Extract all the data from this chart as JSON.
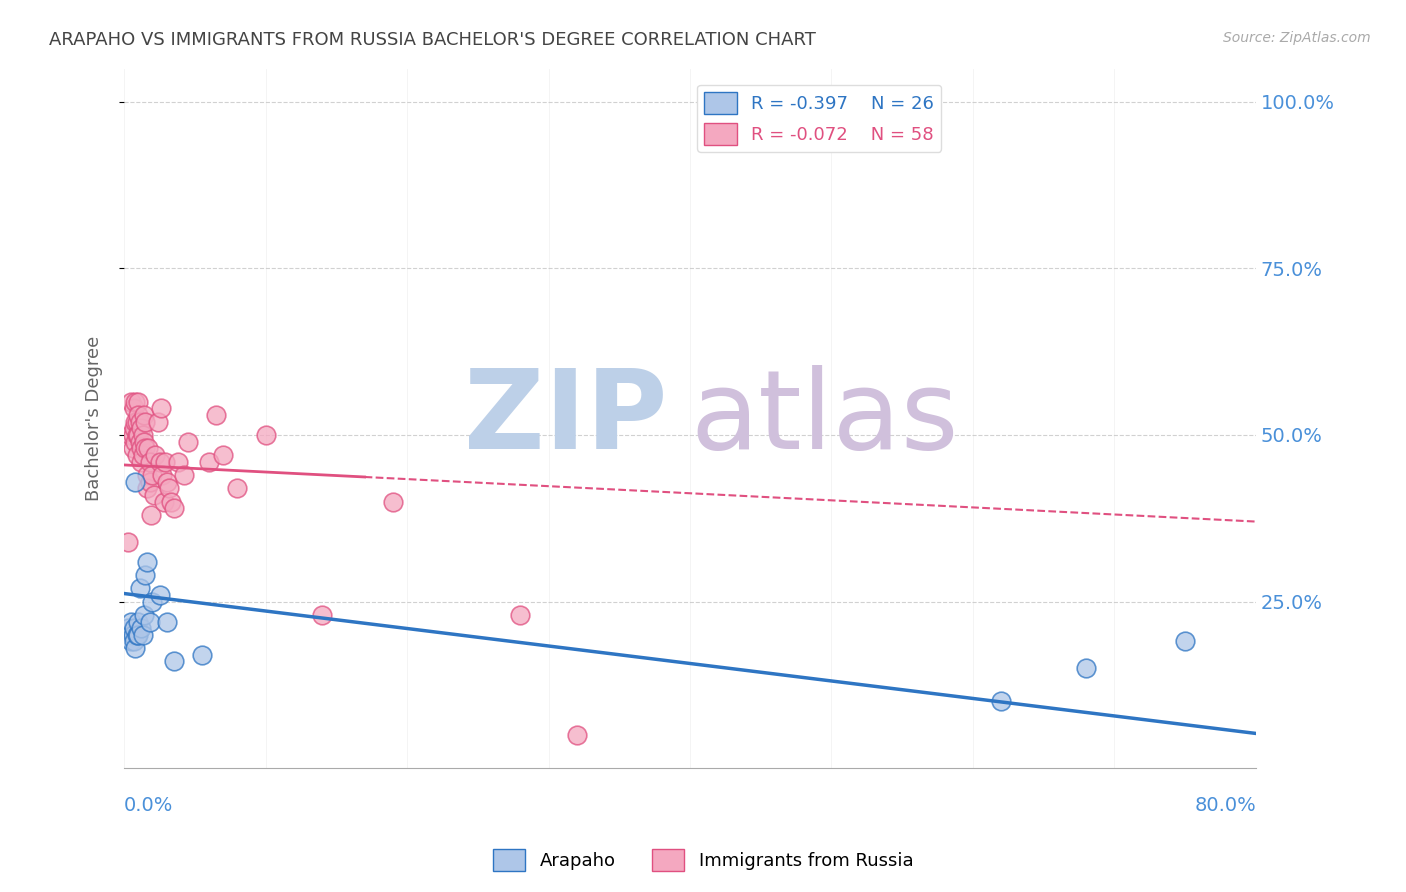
{
  "title": "ARAPAHO VS IMMIGRANTS FROM RUSSIA BACHELOR'S DEGREE CORRELATION CHART",
  "source": "Source: ZipAtlas.com",
  "ylabel": "Bachelor's Degree",
  "ytick_labels": [
    "25.0%",
    "50.0%",
    "75.0%",
    "100.0%"
  ],
  "ytick_values": [
    0.25,
    0.5,
    0.75,
    1.0
  ],
  "xlim": [
    0.0,
    0.8
  ],
  "ylim": [
    0.0,
    1.05
  ],
  "legend_blue_r": "-0.397",
  "legend_blue_n": "26",
  "legend_pink_r": "-0.072",
  "legend_pink_n": "58",
  "arapaho_x": [
    0.003,
    0.005,
    0.005,
    0.006,
    0.007,
    0.007,
    0.008,
    0.008,
    0.009,
    0.01,
    0.01,
    0.011,
    0.012,
    0.013,
    0.014,
    0.015,
    0.016,
    0.018,
    0.02,
    0.025,
    0.03,
    0.035,
    0.055,
    0.62,
    0.68,
    0.75
  ],
  "arapaho_y": [
    0.21,
    0.19,
    0.22,
    0.2,
    0.21,
    0.19,
    0.18,
    0.43,
    0.2,
    0.22,
    0.2,
    0.27,
    0.21,
    0.2,
    0.23,
    0.29,
    0.31,
    0.22,
    0.25,
    0.26,
    0.22,
    0.16,
    0.17,
    0.1,
    0.15,
    0.19
  ],
  "russia_x": [
    0.003,
    0.004,
    0.005,
    0.006,
    0.006,
    0.007,
    0.007,
    0.008,
    0.008,
    0.008,
    0.009,
    0.009,
    0.009,
    0.01,
    0.01,
    0.01,
    0.011,
    0.011,
    0.012,
    0.012,
    0.012,
    0.013,
    0.013,
    0.014,
    0.014,
    0.015,
    0.015,
    0.016,
    0.016,
    0.017,
    0.018,
    0.018,
    0.019,
    0.02,
    0.021,
    0.022,
    0.024,
    0.025,
    0.026,
    0.027,
    0.028,
    0.029,
    0.03,
    0.032,
    0.033,
    0.035,
    0.038,
    0.042,
    0.045,
    0.06,
    0.065,
    0.07,
    0.08,
    0.1,
    0.14,
    0.19,
    0.28,
    0.32
  ],
  "russia_y": [
    0.34,
    0.5,
    0.55,
    0.5,
    0.48,
    0.54,
    0.51,
    0.55,
    0.52,
    0.49,
    0.52,
    0.5,
    0.47,
    0.55,
    0.53,
    0.5,
    0.52,
    0.49,
    0.51,
    0.48,
    0.46,
    0.5,
    0.47,
    0.53,
    0.49,
    0.52,
    0.48,
    0.44,
    0.42,
    0.48,
    0.46,
    0.43,
    0.38,
    0.44,
    0.41,
    0.47,
    0.52,
    0.46,
    0.54,
    0.44,
    0.4,
    0.46,
    0.43,
    0.42,
    0.4,
    0.39,
    0.46,
    0.44,
    0.49,
    0.46,
    0.53,
    0.47,
    0.42,
    0.5,
    0.23,
    0.4,
    0.23,
    0.05
  ],
  "blue_color": "#AEC6E8",
  "pink_color": "#F4A8C0",
  "blue_line_color": "#2E75C3",
  "pink_line_color": "#E05080",
  "bg_color": "#FFFFFF",
  "grid_color": "#CCCCCC",
  "title_color": "#444444",
  "right_label_color": "#4A90D9",
  "watermark_zip_color": "#BDD0E8",
  "watermark_atlas_color": "#D0C0DC"
}
